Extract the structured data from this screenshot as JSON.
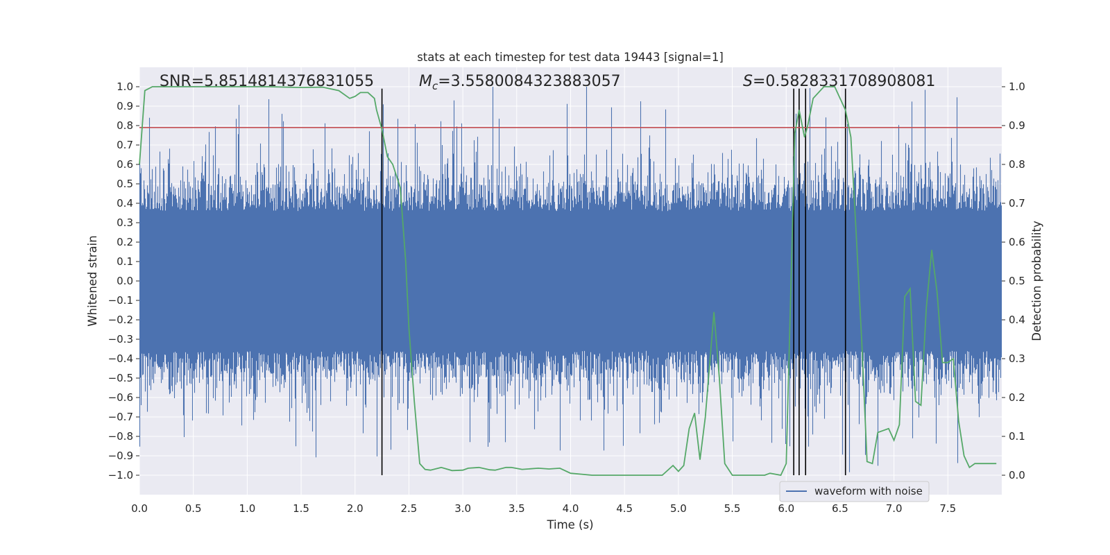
{
  "chart_data": {
    "type": "line",
    "title": "stats at each timestep for test data 19443 [signal=1]",
    "xlabel": "Time (s)",
    "ylabel": "Whitened strain",
    "y2label": "Detection probability",
    "xlim": [
      0.0,
      8.0
    ],
    "ylim": [
      -1.1,
      1.1
    ],
    "y2lim": [
      -0.05,
      1.05
    ],
    "x_ticks": [
      0.0,
      0.5,
      1.0,
      1.5,
      2.0,
      2.5,
      3.0,
      3.5,
      4.0,
      4.5,
      5.0,
      5.5,
      6.0,
      6.5,
      7.0,
      7.5
    ],
    "x_tick_labels": [
      "0.0",
      "0.5",
      "1.0",
      "1.5",
      "2.0",
      "2.5",
      "3.0",
      "3.5",
      "4.0",
      "4.5",
      "5.0",
      "5.5",
      "6.0",
      "6.5",
      "7.0",
      "7.5"
    ],
    "y_ticks": [
      -1.0,
      -0.9,
      -0.8,
      -0.7,
      -0.6,
      -0.5,
      -0.4,
      -0.3,
      -0.2,
      -0.1,
      0.0,
      0.1,
      0.2,
      0.3,
      0.4,
      0.5,
      0.6,
      0.7,
      0.8,
      0.9,
      1.0
    ],
    "y_tick_labels": [
      "−1.0",
      "−0.9",
      "−0.8",
      "−0.7",
      "−0.6",
      "−0.5",
      "−0.4",
      "−0.3",
      "−0.2",
      "−0.1",
      "0.0",
      "0.1",
      "0.2",
      "0.3",
      "0.4",
      "0.5",
      "0.6",
      "0.7",
      "0.8",
      "0.9",
      "1.0"
    ],
    "y2_ticks": [
      0.0,
      0.1,
      0.2,
      0.3,
      0.4,
      0.5,
      0.6,
      0.7,
      0.8,
      0.9,
      1.0
    ],
    "y2_tick_labels": [
      "0.0",
      "0.1",
      "0.2",
      "0.3",
      "0.4",
      "0.5",
      "0.6",
      "0.7",
      "0.8",
      "0.9",
      "1.0"
    ],
    "annotations": {
      "snr": "SNR=5.8514814376831055",
      "mc_symbol": "M",
      "mc_sub": "c",
      "mc_value": "=3.5580084323883057",
      "s_symbol": "S",
      "s_value": "=0.5828331708908081"
    },
    "threshold": {
      "value": 0.79,
      "axis": "left",
      "color": "#c44e52"
    },
    "vertical_lines": [
      2.25,
      6.07,
      6.12,
      6.18,
      6.55
    ],
    "waveform": {
      "name": "waveform with noise",
      "color": "#4c72b0",
      "duration_s": 8.0,
      "noise_description": "dense whitened noise, mostly within ±0.5 with spikes up to about ±1.0"
    },
    "detection_probability": {
      "color": "#55a868",
      "x": [
        0.0,
        0.05,
        0.12,
        0.3,
        0.6,
        0.9,
        1.2,
        1.5,
        1.7,
        1.85,
        1.95,
        2.0,
        2.05,
        2.12,
        2.18,
        2.2,
        2.25,
        2.3,
        2.35,
        2.42,
        2.47,
        2.5,
        2.55,
        2.6,
        2.65,
        2.7,
        2.8,
        2.9,
        3.0,
        3.05,
        3.15,
        3.25,
        3.3,
        3.4,
        3.45,
        3.55,
        3.7,
        3.8,
        3.9,
        4.0,
        4.2,
        4.5,
        4.7,
        4.85,
        4.95,
        5.0,
        5.05,
        5.1,
        5.15,
        5.2,
        5.25,
        5.33,
        5.38,
        5.43,
        5.5,
        5.6,
        5.7,
        5.8,
        5.85,
        5.95,
        6.0,
        6.05,
        6.08,
        6.12,
        6.17,
        6.2,
        6.25,
        6.35,
        6.45,
        6.5,
        6.55,
        6.6,
        6.65,
        6.7,
        6.75,
        6.8,
        6.85,
        6.95,
        7.0,
        7.05,
        7.1,
        7.15,
        7.2,
        7.25,
        7.3,
        7.35,
        7.4,
        7.45,
        7.5,
        7.55,
        7.6,
        7.65,
        7.7,
        7.75,
        7.8,
        7.85,
        7.9,
        7.95
      ],
      "values": [
        0.8,
        0.99,
        1.0,
        1.0,
        1.0,
        1.0,
        1.0,
        0.998,
        0.999,
        0.99,
        0.97,
        0.975,
        0.985,
        0.985,
        0.97,
        0.94,
        0.89,
        0.82,
        0.8,
        0.74,
        0.55,
        0.38,
        0.19,
        0.03,
        0.015,
        0.013,
        0.02,
        0.012,
        0.013,
        0.018,
        0.02,
        0.014,
        0.013,
        0.02,
        0.02,
        0.015,
        0.018,
        0.016,
        0.018,
        0.005,
        0.0,
        0.0,
        0.0,
        0.0,
        0.025,
        0.01,
        0.025,
        0.12,
        0.16,
        0.04,
        0.15,
        0.42,
        0.25,
        0.03,
        0.0,
        0.0,
        0.0,
        0.0,
        0.005,
        0.0,
        0.03,
        0.55,
        0.88,
        0.94,
        0.87,
        0.9,
        0.97,
        1.0,
        1.0,
        0.97,
        0.94,
        0.87,
        0.62,
        0.35,
        0.035,
        0.03,
        0.11,
        0.12,
        0.09,
        0.13,
        0.46,
        0.48,
        0.19,
        0.18,
        0.43,
        0.58,
        0.47,
        0.29,
        0.29,
        0.3,
        0.14,
        0.05,
        0.02,
        0.03,
        0.03,
        0.03,
        0.03,
        0.03
      ]
    },
    "legend": {
      "entries": [
        "waveform with noise"
      ],
      "placement": "lower-right"
    }
  }
}
